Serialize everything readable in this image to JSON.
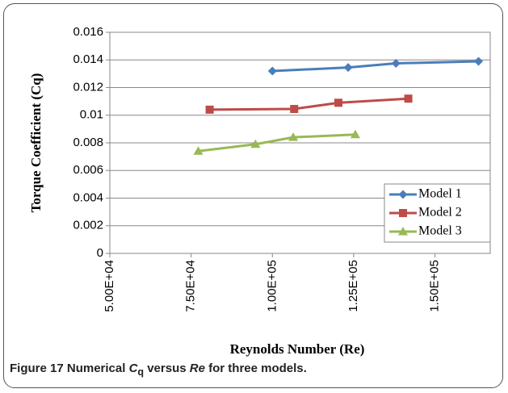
{
  "chart_data": {
    "type": "line",
    "x_label": "Reynolds Number (Re)",
    "y_label": "Torque Coefficient (Cq)",
    "xlim": [
      50000,
      167000
    ],
    "xticks": [
      {
        "value": 50000,
        "label": "5.00E+04"
      },
      {
        "value": 75000,
        "label": "7.50E+04"
      },
      {
        "value": 100000,
        "label": "1.00E+05"
      },
      {
        "value": 125000,
        "label": "1.25E+05"
      },
      {
        "value": 150000,
        "label": "1.50E+05"
      }
    ],
    "ylim": [
      0,
      0.016
    ],
    "yticks": [
      0,
      0.002,
      0.004,
      0.006,
      0.008,
      0.01,
      0.012,
      0.014,
      0.016
    ],
    "grid": true,
    "legend": "lower right",
    "series": [
      {
        "name": "Model 1",
        "color": "#4a7ebb",
        "marker": "diamond",
        "x": [
          100000,
          123300,
          138000,
          163400
        ],
        "values": [
          0.0132,
          0.01345,
          0.01375,
          0.0139
        ]
      },
      {
        "name": "Model 2",
        "color": "#be4b48",
        "marker": "square",
        "x": [
          80700,
          106700,
          120300,
          141800
        ],
        "values": [
          0.0104,
          0.01045,
          0.0109,
          0.0112
        ]
      },
      {
        "name": "Model 3",
        "color": "#98b954",
        "marker": "triangle",
        "x": [
          77200,
          94800,
          106400,
          125500
        ],
        "values": [
          0.0074,
          0.0079,
          0.0084,
          0.0086
        ]
      }
    ]
  },
  "caption": {
    "label": "Figure 17",
    "parts": [
      "Numerical ",
      "C",
      "q",
      " versus ",
      "Re",
      " for three models."
    ]
  }
}
